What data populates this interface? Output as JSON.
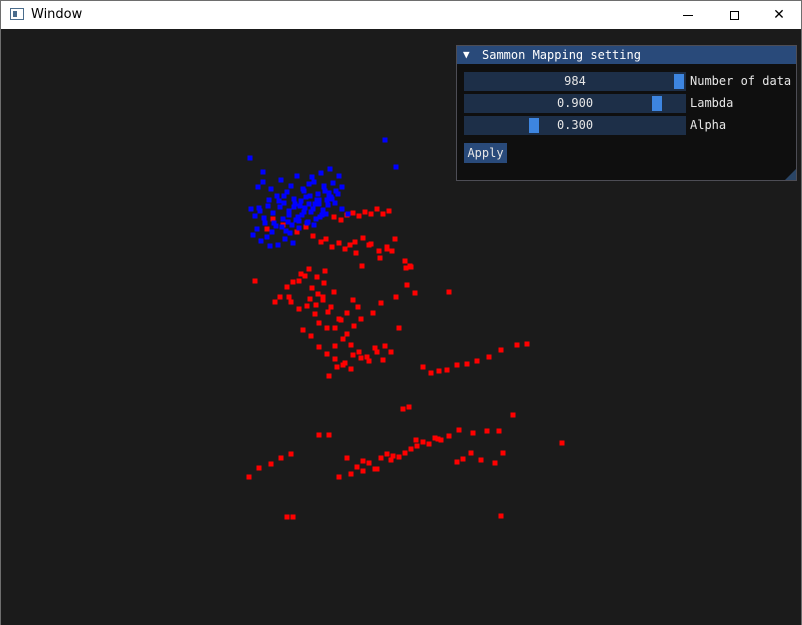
{
  "window": {
    "title": "Window",
    "buttons": {
      "minimize": "minimize",
      "maximize": "maximize",
      "close": "✕"
    }
  },
  "panel": {
    "title": "Sammon Mapping setting",
    "collapse_icon": "triangle-down-icon",
    "sliders": [
      {
        "label": "Number of data",
        "value": "984",
        "level": 1.0
      },
      {
        "label": "Lambda",
        "value": "0.900",
        "level": 0.9
      },
      {
        "label": "Alpha",
        "value": "0.300",
        "level": 0.3
      }
    ],
    "apply_label": "Apply",
    "colors": {
      "header": "#294a7a",
      "frame": "#1d2f48",
      "grab": "#3d85e0"
    }
  },
  "chart_data": {
    "type": "scatter",
    "title": "",
    "xlabel": "",
    "ylabel": "",
    "grid": false,
    "legend": "none",
    "series": [
      {
        "color": "#0000ff",
        "x": [
          249,
          262,
          270,
          276,
          280,
          283,
          286,
          290,
          293,
          296,
          299,
          302,
          305,
          308,
          311,
          314,
          317,
          320,
          323,
          326,
          329,
          332,
          335,
          338,
          341,
          254,
          258,
          264,
          268,
          272,
          275,
          279,
          282,
          285,
          288,
          291,
          294,
          297,
          300,
          303,
          306,
          309,
          312,
          315,
          318,
          321,
          324,
          327,
          330,
          252,
          256,
          260,
          266,
          271,
          277,
          281,
          284,
          287,
          289,
          292,
          295,
          298,
          301,
          304,
          307,
          310,
          313,
          316,
          319,
          322,
          325,
          328,
          331,
          334,
          337,
          259,
          263,
          267,
          273,
          278,
          283,
          288,
          293,
          298,
          303,
          308,
          313,
          318,
          323,
          328,
          384,
          395,
          341,
          347,
          250,
          262,
          269,
          257
        ],
        "y": [
          157,
          181,
          188,
          195,
          179,
          202,
          191,
          185,
          198,
          175,
          205,
          188,
          196,
          183,
          176,
          203,
          193,
          172,
          185,
          199,
          168,
          182,
          190,
          175,
          186,
          215,
          207,
          222,
          199,
          212,
          225,
          206,
          218,
          230,
          210,
          224,
          203,
          216,
          200,
          211,
          222,
          195,
          208,
          218,
          203,
          214,
          190,
          204,
          196,
          234,
          228,
          240,
          236,
          231,
          244,
          226,
          238,
          221,
          232,
          242,
          219,
          227,
          214,
          207,
          221,
          211,
          224,
          199,
          216,
          209,
          213,
          194,
          198,
          202,
          193,
          210,
          217,
          205,
          222,
          200,
          195,
          214,
          206,
          220,
          190,
          203,
          181,
          199,
          186,
          192,
          139,
          166,
          208,
          213,
          208,
          171,
          245,
          186
        ]
      },
      {
        "color": "#ff0000",
        "x": [
          333,
          340,
          346,
          352,
          358,
          364,
          370,
          376,
          382,
          388,
          272,
          266,
          282,
          296,
          305,
          312,
          320,
          325,
          331,
          338,
          344,
          349,
          355,
          362,
          370,
          378,
          386,
          394,
          300,
          308,
          316,
          324,
          292,
          286,
          279,
          290,
          298,
          306,
          314,
          322,
          330,
          338,
          346,
          353,
          360,
          302,
          310,
          318,
          326,
          334,
          342,
          350,
          358,
          366,
          374,
          382,
          390,
          398,
          406,
          410,
          404,
          395,
          380,
          372,
          318,
          326,
          334,
          342,
          350,
          328,
          336,
          344,
          352,
          360,
          368,
          376,
          384,
          254,
          274,
          288,
          448,
          414,
          422,
          430,
          438,
          446,
          456,
          466,
          476,
          488,
          500,
          516,
          526,
          402,
          408,
          415,
          437,
          458,
          472,
          486,
          498,
          512,
          561,
          328,
          346,
          356,
          362,
          368,
          374,
          380,
          386,
          392,
          398,
          404,
          410,
          416,
          422,
          428,
          434,
          440,
          448,
          456,
          462,
          470,
          480,
          338,
          350,
          362,
          376,
          390,
          248,
          258,
          270,
          280,
          290,
          318,
          286,
          292,
          494,
          502,
          500,
          354,
          368,
          386,
          409,
          379,
          361,
          391,
          405,
          309,
          315,
          322,
          327,
          333,
          298,
          304,
          311,
          317,
          323,
          346,
          340,
          334,
          352,
          357
        ],
        "y": [
          216,
          219,
          214,
          212,
          215,
          211,
          213,
          208,
          213,
          210,
          218,
          228,
          224,
          231,
          226,
          235,
          241,
          238,
          246,
          242,
          248,
          244,
          252,
          237,
          243,
          250,
          246,
          238,
          273,
          268,
          276,
          270,
          281,
          286,
          296,
          301,
          308,
          305,
          313,
          299,
          306,
          318,
          312,
          325,
          318,
          329,
          335,
          322,
          327,
          345,
          338,
          344,
          351,
          356,
          347,
          359,
          351,
          327,
          284,
          266,
          260,
          296,
          302,
          312,
          346,
          353,
          358,
          364,
          368,
          375,
          366,
          362,
          354,
          357,
          360,
          351,
          345,
          280,
          301,
          296,
          291,
          292,
          366,
          372,
          370,
          369,
          364,
          363,
          360,
          356,
          349,
          344,
          343,
          408,
          406,
          439,
          438,
          429,
          432,
          430,
          430,
          414,
          442,
          434,
          457,
          466,
          460,
          462,
          468,
          457,
          453,
          455,
          456,
          452,
          448,
          445,
          441,
          443,
          437,
          439,
          435,
          461,
          458,
          452,
          459,
          476,
          473,
          470,
          468,
          459,
          476,
          467,
          463,
          457,
          453,
          434,
          516,
          516,
          462,
          452,
          515,
          241,
          244,
          248,
          265,
          257,
          265,
          250,
          267,
          298,
          304,
          296,
          311,
          291,
          280,
          275,
          287,
          293,
          282,
          333,
          319,
          327,
          299,
          306
        ]
      }
    ]
  }
}
